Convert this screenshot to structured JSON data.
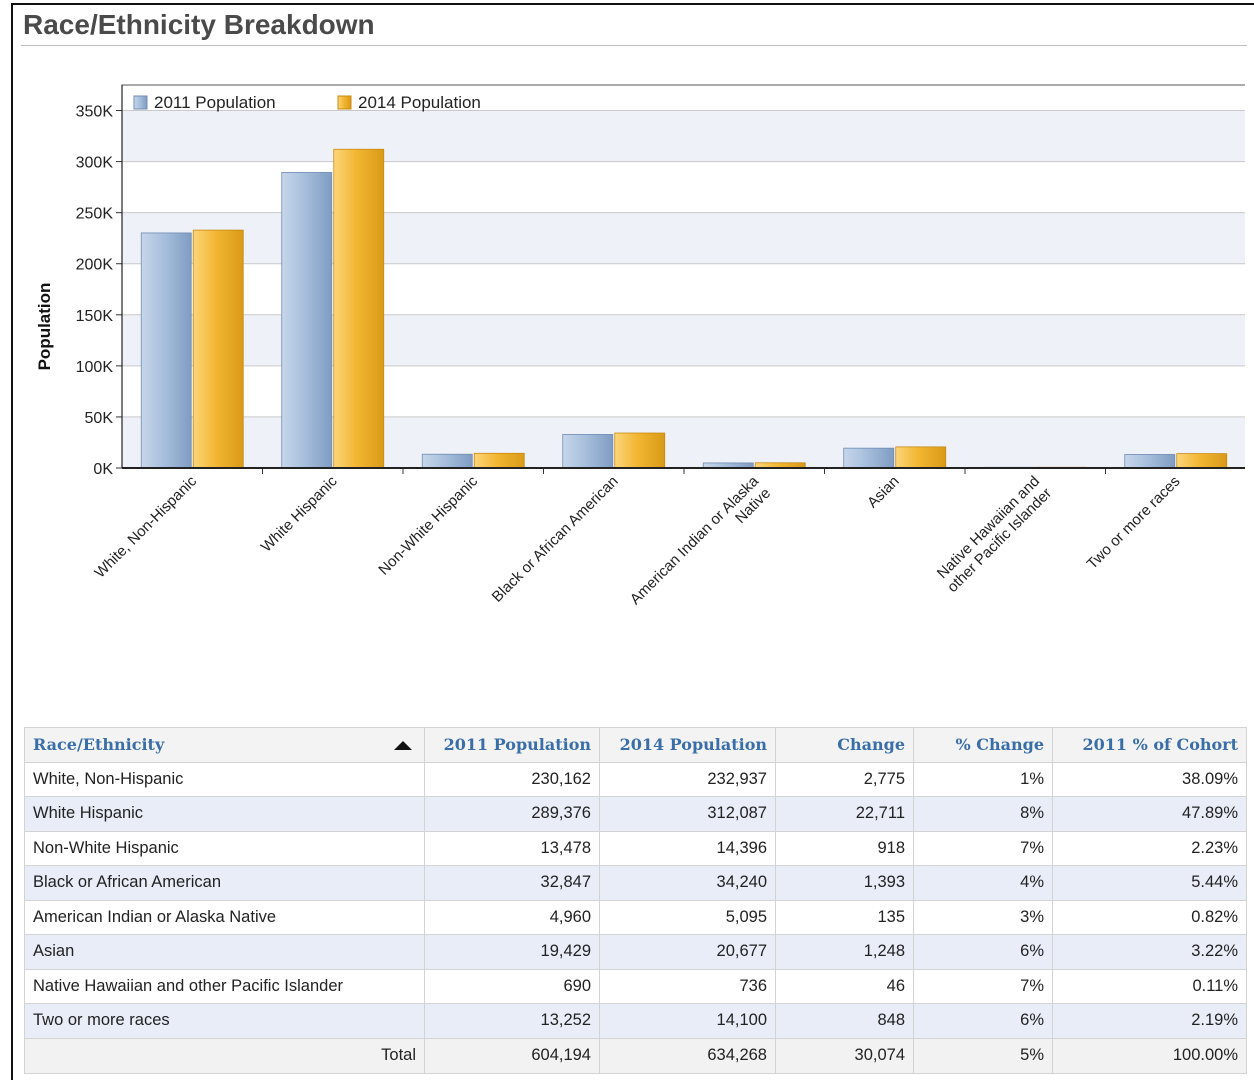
{
  "page": {
    "title": "Race/Ethnicity Breakdown"
  },
  "chart_data": {
    "type": "bar",
    "title": "",
    "xlabel": "",
    "ylabel": "Population",
    "ylim": [
      0,
      375000
    ],
    "yticks": [
      0,
      50000,
      100000,
      150000,
      200000,
      250000,
      300000,
      350000
    ],
    "ytick_labels": [
      "0K",
      "50K",
      "100K",
      "150K",
      "200K",
      "250K",
      "300K",
      "350K"
    ],
    "categories": [
      [
        "White, Non-Hispanic"
      ],
      [
        "White Hispanic"
      ],
      [
        "Non-White Hispanic"
      ],
      [
        "Black or African American"
      ],
      [
        "American Indian or Alaska",
        "Native"
      ],
      [
        "Asian"
      ],
      [
        "Native Hawaiian and",
        "other Pacific Islander"
      ],
      [
        "Two or more races"
      ]
    ],
    "series": [
      {
        "name": "2011 Population",
        "values": [
          230162,
          289376,
          13478,
          32847,
          4960,
          19429,
          690,
          13252
        ]
      },
      {
        "name": "2014 Population",
        "values": [
          232937,
          312087,
          14396,
          34240,
          5095,
          20677,
          736,
          14100
        ]
      }
    ],
    "legend_position": "top-left",
    "grid": true
  },
  "colors": {
    "series_2011": "#a7bfdc",
    "series_2014": "#f2b632",
    "plot_bg": "#eef1f8",
    "header_text": "#3a6ea8"
  },
  "table": {
    "headers": [
      "Race/Ethnicity",
      "2011 Population",
      "2014 Population",
      "Change",
      "% Change",
      "2011 % of Cohort"
    ],
    "sort_icon": "sort-ascending-icon",
    "rows": [
      [
        "White, Non-Hispanic",
        "230,162",
        "232,937",
        "2,775",
        "1%",
        "38.09%"
      ],
      [
        "White Hispanic",
        "289,376",
        "312,087",
        "22,711",
        "8%",
        "47.89%"
      ],
      [
        "Non-White Hispanic",
        "13,478",
        "14,396",
        "918",
        "7%",
        "2.23%"
      ],
      [
        "Black or African American",
        "32,847",
        "34,240",
        "1,393",
        "4%",
        "5.44%"
      ],
      [
        "American Indian or Alaska Native",
        "4,960",
        "5,095",
        "135",
        "3%",
        "0.82%"
      ],
      [
        "Asian",
        "19,429",
        "20,677",
        "1,248",
        "6%",
        "3.22%"
      ],
      [
        "Native Hawaiian and other Pacific Islander",
        "690",
        "736",
        "46",
        "7%",
        "0.11%"
      ],
      [
        "Two or more races",
        "13,252",
        "14,100",
        "848",
        "6%",
        "2.19%"
      ]
    ],
    "total": [
      "Total",
      "604,194",
      "634,268",
      "30,074",
      "5%",
      "100.00%"
    ]
  }
}
